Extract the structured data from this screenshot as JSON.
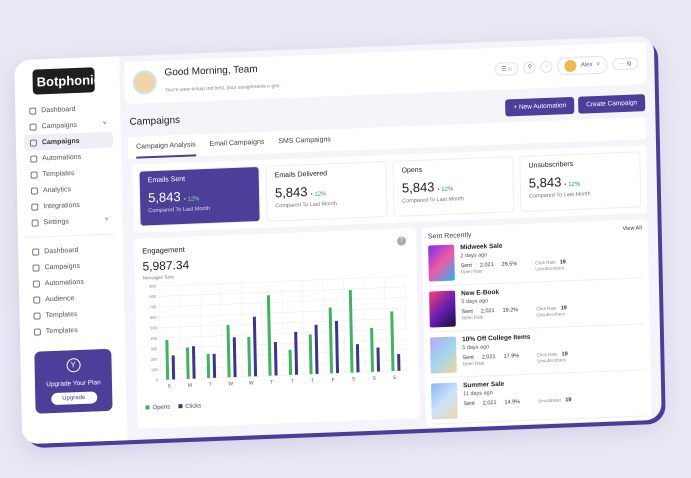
{
  "brand": "Botphonic",
  "sidebar": {
    "items": [
      {
        "label": "Dashboard",
        "icon": "clock-icon"
      },
      {
        "label": "Campaigns",
        "icon": "mail-icon",
        "chevron": true
      },
      {
        "label": "Campaigns",
        "icon": "chart-icon",
        "active": true
      },
      {
        "label": "Automations",
        "icon": "flow-icon"
      },
      {
        "label": "Templates",
        "icon": "template-icon"
      },
      {
        "label": "Analytics",
        "icon": "gear-icon"
      },
      {
        "label": "Integrations",
        "icon": "plug-icon"
      },
      {
        "label": "Settings",
        "icon": "settings-icon",
        "chevron": true
      }
    ],
    "items2": [
      {
        "label": "Dashboard",
        "icon": "dashboard-icon"
      },
      {
        "label": "Campaigns",
        "icon": "mail-icon"
      },
      {
        "label": "Automations",
        "icon": "flow-icon"
      },
      {
        "label": "Audience",
        "icon": "audience-icon"
      },
      {
        "label": "Templates",
        "icon": "template-icon"
      },
      {
        "label": "Templates",
        "icon": "gear-icon"
      }
    ],
    "upgrade": {
      "title": "Upgrade Your Plan",
      "button": "Upgrade"
    }
  },
  "header": {
    "greeting": "Good Morning, Team",
    "subtitle": "You're wew entuip ind best, your assignments o gos.",
    "user": "Alex",
    "extra": "··· ig"
  },
  "page": {
    "title": "Campaigns",
    "new_automation": "+ New Automation",
    "create_campaign": "Create Campaign"
  },
  "tabs": [
    "Campaign Analysis",
    "Email Campaigns",
    "SMS Campaigns"
  ],
  "stats": [
    {
      "title": "Emails Sent",
      "value": "5,843",
      "change": "• 12%",
      "caption": "Compared To Last Month"
    },
    {
      "title": "Emails Delivered",
      "value": "5,843",
      "change": "• 12%",
      "caption": "Compared To Last Month"
    },
    {
      "title": "Opens",
      "value": "5,843",
      "change": "• 12%",
      "caption": "Compared To Last Month"
    },
    {
      "title": "Unsubscribers",
      "value": "5,843",
      "change": "• 12%",
      "caption": "Compared To Last Month"
    }
  ],
  "engagement": {
    "title": "Engagement",
    "value": "5,987.34",
    "sub": "Messages Sent",
    "help": "?"
  },
  "chart_data": {
    "type": "bar",
    "categories": [
      "S",
      "M",
      "T",
      "W",
      "W",
      "T",
      "T",
      "T",
      "F",
      "S",
      "S",
      "S"
    ],
    "series": [
      {
        "name": "Opens",
        "color": "#3cb55e",
        "values": [
          380,
          300,
          230,
          500,
          380,
          770,
          240,
          380,
          630,
          790,
          420,
          570
        ]
      },
      {
        "name": "Clicks",
        "color": "#3b3590",
        "values": [
          230,
          310,
          230,
          380,
          570,
          320,
          410,
          470,
          500,
          270,
          230,
          160
        ]
      }
    ],
    "ylim": [
      0,
      900
    ],
    "yticks": [
      0,
      100,
      200,
      300,
      400,
      500,
      600,
      700,
      800,
      900
    ],
    "grid": true,
    "legend": "bottom-left"
  },
  "sent_recently": {
    "title": "Sent Recently",
    "view_all": "View All",
    "items": [
      {
        "name": "Midweek Sale",
        "ago": "2 days ago",
        "sent_label": "Sent",
        "sent": "2,021",
        "open": "26.5%",
        "open_label": "Open Rate",
        "click_label": "Click Rate",
        "clicks": "19",
        "unsub_label": "Unsubscribers",
        "colors": [
          "#7b2ff7",
          "#f15aa0",
          "#1fb5ff"
        ]
      },
      {
        "name": "New E-Book",
        "ago": "5 days ago",
        "sent_label": "Sent",
        "sent": "2,021",
        "open": "19.2%",
        "open_label": "Open Rate",
        "click_label": "Click Rate",
        "clicks": "19",
        "unsub_label": "Unsubscribers",
        "colors": [
          "#ff3d6e",
          "#6a1fb5",
          "#1a1040"
        ]
      },
      {
        "name": "10% Off College Items",
        "ago": "5 days ago",
        "sent_label": "Sent",
        "sent": "2,021",
        "open": "17.9%",
        "open_label": "Open Rate",
        "click_label": "Click Rate",
        "clicks": "19",
        "unsub_label": "Unsubscribers",
        "colors": [
          "#b7a7f0",
          "#9fd7f0",
          "#f4d39a"
        ]
      },
      {
        "name": "Summer Sale",
        "ago": "11 days ago",
        "sent_label": "Sent",
        "sent": "2,021",
        "open": "14.9%",
        "open_label": "",
        "click_label": "Unsubbeter",
        "clicks": "19",
        "unsub_label": "",
        "colors": [
          "#8fb4f5",
          "#c8e3fb",
          "#f1d7a5"
        ]
      }
    ]
  }
}
